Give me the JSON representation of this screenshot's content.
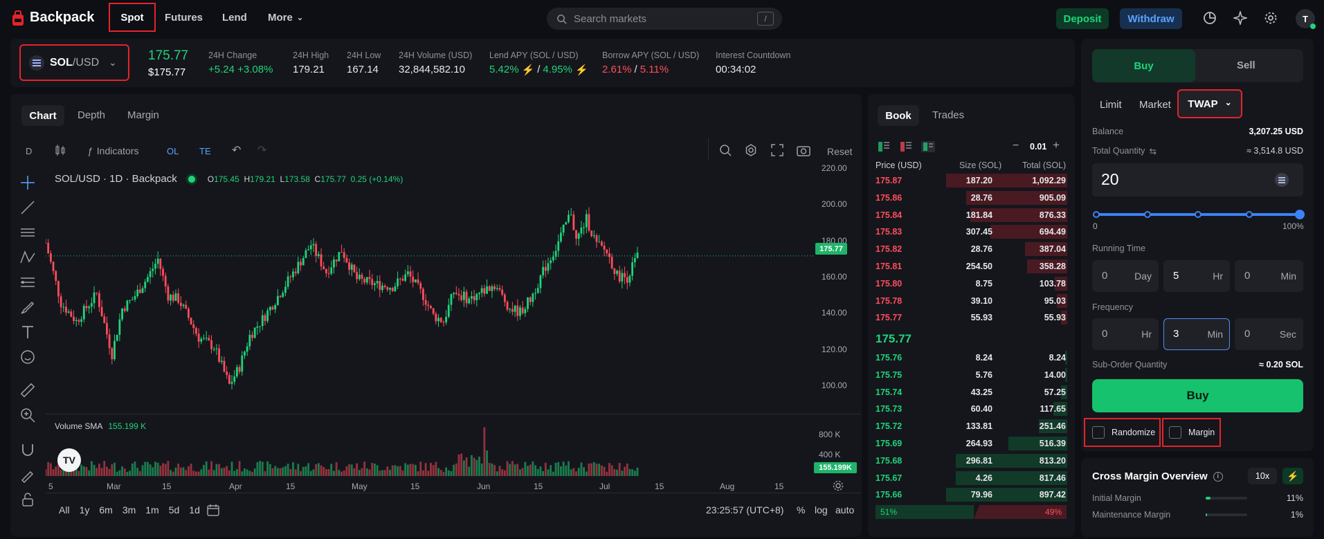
{
  "nav": {
    "brand": "Backpack",
    "spot": "Spot",
    "futures": "Futures",
    "lend": "Lend",
    "more": "More",
    "search_placeholder": "Search markets",
    "search_key": "/",
    "deposit": "Deposit",
    "withdraw": "Withdraw",
    "avatar": "T"
  },
  "ticker": {
    "pair_base": "SOL",
    "pair_quote": "/USD",
    "price": "175.77",
    "price_usd": "$175.77",
    "stats": [
      {
        "label": "24H Change",
        "value": "+5.24 +3.08%"
      },
      {
        "label": "24H High",
        "value": "179.21"
      },
      {
        "label": "24H Low",
        "value": "167.14"
      },
      {
        "label": "24H Volume (USD)",
        "value": "32,844,582.10"
      }
    ],
    "lend_label": "Lend APY (SOL / USD)",
    "lend_a": "5.42%",
    "lend_b": "4.95%",
    "borrow_label": "Borrow APY (SOL / USD)",
    "borrow_a": "2.61%",
    "borrow_b": "5.11%",
    "sep": "/",
    "countdown_label": "Interest Countdown",
    "countdown": "00:34:02"
  },
  "chart": {
    "tabs": [
      "Chart",
      "Depth",
      "Margin"
    ],
    "interval": "D",
    "indicators": "Indicators",
    "ol": "OL",
    "te": "TE",
    "reset": "Reset",
    "legend_title": "SOL/USD · 1D · Backpack",
    "o": "O",
    "o_v": "175.45",
    "h": "H",
    "h_v": "179.21",
    "l": "L",
    "l_v": "173.58",
    "c": "C",
    "c_v": "175.77",
    "chg": "0.25 (+0.14%)",
    "volume_label": "Volume SMA",
    "volume_value": "155.199 K",
    "y_ticks": [
      "220.00",
      "200.00",
      "180.00",
      "160.00",
      "140.00",
      "120.00",
      "100.00"
    ],
    "price_tag": "175.77",
    "vol_ticks": [
      "800 K",
      "400 K"
    ],
    "vol_tag": "155.199K",
    "x_ticks": [
      "5",
      "Mar",
      "15",
      "Apr",
      "15",
      "May",
      "15",
      "Jun",
      "15",
      "Jul",
      "15",
      "Aug",
      "15"
    ],
    "ranges": [
      "All",
      "1y",
      "6m",
      "3m",
      "1m",
      "5d",
      "1d"
    ],
    "time": "23:25:57 (UTC+8)",
    "pct": "%",
    "log": "log",
    "auto": "auto"
  },
  "chart_data": {
    "type": "candlestick",
    "series": [
      {
        "name": "SOL/USD",
        "last": 175.77
      }
    ],
    "ylim": [
      90,
      222
    ],
    "y_ticks": [
      100,
      120,
      140,
      160,
      180,
      200,
      220
    ],
    "x_ticks": [
      "5",
      "Mar",
      "15",
      "Apr",
      "15",
      "May",
      "15",
      "Jun",
      "15",
      "Jul",
      "15",
      "Aug",
      "15"
    ],
    "title": "SOL/USD · 1D · Backpack"
  },
  "book": {
    "tabs": [
      "Book",
      "Trades"
    ],
    "tick": "0.01",
    "h_price": "Price (USD)",
    "h_size": "Size (SOL)",
    "h_total": "Total (SOL)",
    "mid": "175.77",
    "asks": [
      [
        "175.87",
        "187.20",
        "1,092.29"
      ],
      [
        "175.86",
        "28.76",
        "905.09"
      ],
      [
        "175.84",
        "181.84",
        "876.33"
      ],
      [
        "175.83",
        "307.45",
        "694.49"
      ],
      [
        "175.82",
        "28.76",
        "387.04"
      ],
      [
        "175.81",
        "254.50",
        "358.28"
      ],
      [
        "175.80",
        "8.75",
        "103.78"
      ],
      [
        "175.78",
        "39.10",
        "95.03"
      ],
      [
        "175.77",
        "55.93",
        "55.93"
      ]
    ],
    "ask_depth": [
      0.6,
      0.5,
      0.48,
      0.38,
      0.21,
      0.2,
      0.06,
      0.05,
      0.03
    ],
    "bids": [
      [
        "175.76",
        "8.24",
        "8.24"
      ],
      [
        "175.75",
        "5.76",
        "14.00"
      ],
      [
        "175.74",
        "43.25",
        "57.25"
      ],
      [
        "175.73",
        "60.40",
        "117.65"
      ],
      [
        "175.72",
        "133.81",
        "251.46"
      ],
      [
        "175.69",
        "264.93",
        "516.39"
      ],
      [
        "175.68",
        "296.81",
        "813.20"
      ],
      [
        "175.67",
        "4.26",
        "817.46"
      ],
      [
        "175.66",
        "79.96",
        "897.42"
      ]
    ],
    "bid_depth": [
      0.01,
      0.01,
      0.03,
      0.07,
      0.14,
      0.29,
      0.55,
      0.55,
      0.6
    ],
    "buy_pct": "51%",
    "sell_pct": "49%"
  },
  "order": {
    "buy": "Buy",
    "sell": "Sell",
    "types": [
      "Limit",
      "Market"
    ],
    "twap": "TWAP",
    "balance_label": "Balance",
    "balance": "3,207.25 USD",
    "qty_label": "Total Quantity",
    "qty_approx": "≈ 3,514.8 USD",
    "qty": "20",
    "slider_min": "0",
    "slider_max": "100%",
    "slider_level": 1.0,
    "running_label": "Running Time",
    "run": [
      [
        "0",
        "Day"
      ],
      [
        "5",
        "Hr"
      ],
      [
        "0",
        "Min"
      ]
    ],
    "freq_label": "Frequency",
    "freq": [
      [
        "0",
        "Hr"
      ],
      [
        "3",
        "Min"
      ],
      [
        "0",
        "Sec"
      ]
    ],
    "sub_label": "Sub-Order Quantity",
    "sub_value": "≈ 0.20 SOL",
    "submit": "Buy",
    "randomize": "Randomize",
    "margin": "Margin"
  },
  "overview": {
    "title": "Cross Margin Overview",
    "lev": "10x",
    "rows": [
      {
        "label": "Initial Margin",
        "value": "11%",
        "level": 0.11
      },
      {
        "label": "Maintenance Margin",
        "value": "1%",
        "level": 0.01
      }
    ]
  },
  "colors": {
    "green": "#1fd47a",
    "red": "#ff4d5b",
    "accent": "#5aa3ff"
  }
}
